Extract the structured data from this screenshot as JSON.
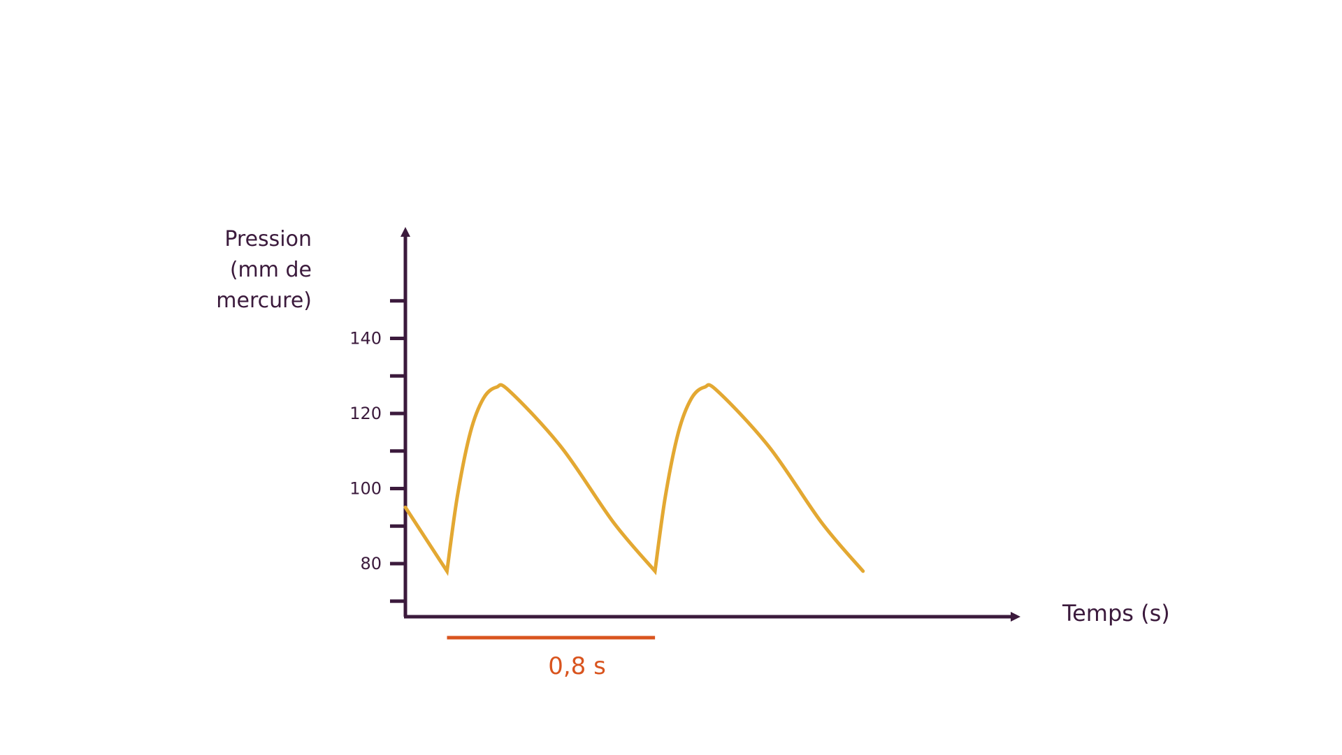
{
  "colors": {
    "axis": "#3b1a3c",
    "curve": "#e3a832",
    "period": "#d9541e",
    "background": "#ffffff"
  },
  "chart_data": {
    "type": "line",
    "title": "",
    "ylabel_lines": [
      "Pression",
      "(mm de",
      "mercure)"
    ],
    "xlabel": "Temps (s)",
    "x_unit": "s",
    "ylim": [
      65,
      170
    ],
    "xlim": [
      0,
      1.9
    ],
    "y_ticks": [
      70,
      80,
      90,
      100,
      110,
      120,
      130,
      140,
      150
    ],
    "y_tick_labels": [
      {
        "value": 80,
        "label": "80"
      },
      {
        "value": 100,
        "label": "100"
      },
      {
        "value": 120,
        "label": "120"
      },
      {
        "value": 140,
        "label": "140"
      }
    ],
    "grid": false,
    "series": [
      {
        "x": [
          0,
          0.16,
          0.2,
          0.25,
          0.3,
          0.35,
          0.4,
          0.6,
          0.8,
          0.96,
          1.0,
          1.05,
          1.1,
          1.15,
          1.2,
          1.4,
          1.6,
          1.76
        ],
        "y": [
          95,
          78,
          98,
          115,
          124,
          127,
          126,
          111,
          91,
          78,
          98,
          115,
          124,
          127,
          126,
          111,
          91,
          78
        ]
      }
    ],
    "annotations": [
      {
        "type": "period-bar",
        "x_start": 0.16,
        "x_end": 0.96,
        "label": "0,8 s"
      }
    ]
  }
}
